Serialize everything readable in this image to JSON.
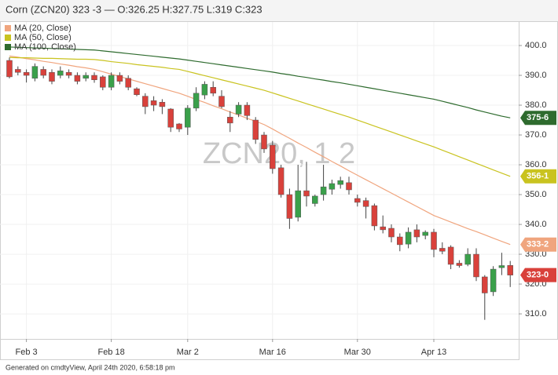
{
  "chart_data": {
    "type": "candlestick",
    "title": "Corn (ZCN20) 323 -3 — O:326.25 H:327.75 L:319 C:323",
    "watermark": "ZCN20, 1 2",
    "footer": "Generated on cmdtyView, April 24th 2020, 6:58:18 pm",
    "categories": [
      null,
      null,
      "Feb 3",
      null,
      null,
      null,
      null,
      null,
      null,
      null,
      null,
      null,
      "Feb 18",
      null,
      null,
      null,
      null,
      null,
      null,
      null,
      null,
      "Mar 2",
      null,
      null,
      null,
      null,
      null,
      null,
      null,
      null,
      null,
      "Mar 16",
      null,
      null,
      null,
      null,
      null,
      null,
      null,
      null,
      null,
      "Mar 30",
      null,
      null,
      null,
      null,
      null,
      null,
      null,
      null,
      "Apr 13",
      null,
      null,
      null,
      null,
      null,
      null,
      null,
      null,
      null
    ],
    "open": [
      395,
      392,
      391,
      389,
      392,
      391,
      390,
      391,
      390,
      389,
      390,
      389.5,
      386,
      390,
      389,
      385.5,
      383,
      381.5,
      381,
      378.7,
      373.7,
      372.6,
      379,
      383.4,
      386,
      383,
      376,
      377,
      380,
      375,
      370,
      366.6,
      359,
      350,
      342.4,
      351.3,
      347,
      350,
      351.8,
      353.4,
      354,
      348.7,
      348,
      346.3,
      339.2,
      338.7,
      335.8,
      333.4,
      338.2,
      336.3,
      337.4,
      332,
      332.4,
      327,
      326.6,
      330,
      322.4,
      317.4,
      325.5,
      326.25
    ],
    "high": [
      396,
      393,
      392,
      394,
      393,
      392,
      393,
      392,
      391,
      391,
      391,
      390,
      391,
      391,
      390,
      386,
      384,
      383,
      382,
      379,
      374,
      380,
      386,
      388,
      388,
      385,
      378,
      381,
      381,
      376,
      371,
      368,
      360,
      352,
      360,
      361,
      350,
      360,
      355,
      356,
      356,
      350,
      349,
      347,
      343,
      340,
      337,
      339,
      340,
      338,
      338.5,
      334,
      333,
      328,
      332,
      332,
      323,
      326,
      330.5,
      327.75
    ],
    "low": [
      389,
      390,
      387.6,
      388,
      389,
      387,
      389,
      389,
      387,
      388,
      387.5,
      385,
      385,
      387,
      385,
      383,
      377,
      378,
      377,
      371,
      371,
      370,
      378,
      382,
      383,
      379,
      371,
      376,
      375,
      367,
      364,
      357,
      349,
      338.5,
      341,
      346,
      346,
      348,
      350,
      352,
      350,
      346,
      342,
      338,
      337,
      334,
      331,
      332,
      334,
      335,
      329,
      330,
      325,
      325.5,
      326,
      321,
      308,
      316,
      323,
      319
    ],
    "close": [
      389.5,
      391,
      390,
      393,
      390,
      388,
      391.5,
      390,
      388,
      390,
      388.5,
      386,
      390,
      388,
      386,
      383.5,
      379.5,
      380,
      379.5,
      372.6,
      372,
      379,
      384,
      387,
      384,
      379.5,
      374,
      380,
      376.5,
      368.5,
      365.3,
      358.7,
      350,
      342,
      351.3,
      349.5,
      349.5,
      352.6,
      353.7,
      354.7,
      351.6,
      347.4,
      346,
      339.5,
      338.2,
      335.8,
      333.2,
      337.4,
      335.8,
      337.4,
      331.6,
      331,
      326.6,
      326.2,
      330,
      322.4,
      317,
      325,
      326.2,
      323
    ],
    "last_label": "323-0",
    "up_color": "#3aa04a",
    "down_color": "#d9413b",
    "series": [
      {
        "name": "MA (20, Close)",
        "color": "#f0a57e",
        "last_label": "333-2",
        "values": [
          396.5,
          396.1,
          395.6,
          395.2,
          394.7,
          394.3,
          393.8,
          393.4,
          392.9,
          392.5,
          392.0,
          391.2,
          390.4,
          389.6,
          388.8,
          388.0,
          387.2,
          386.4,
          385.6,
          384.8,
          384.0,
          383.0,
          381.9,
          380.9,
          379.8,
          378.8,
          377.7,
          376.7,
          375.6,
          374.6,
          373.5,
          372.0,
          370.4,
          368.9,
          367.3,
          365.8,
          364.2,
          362.7,
          361.1,
          359.6,
          358.0,
          356.5,
          355.0,
          353.5,
          352.0,
          350.5,
          349.0,
          347.5,
          346.0,
          344.5,
          343.0,
          341.9,
          340.8,
          339.7,
          338.6,
          337.6,
          336.5,
          335.4,
          334.3,
          333.25
        ]
      },
      {
        "name": "MA (50, Close)",
        "color": "#c9c31f",
        "last_label": "356-1",
        "values": [
          396.0,
          395.9,
          395.9,
          395.8,
          395.7,
          395.7,
          395.6,
          395.5,
          395.4,
          395.4,
          395.3,
          395.0,
          394.6,
          394.3,
          394.0,
          393.6,
          393.3,
          393.0,
          392.7,
          392.3,
          392.0,
          391.3,
          390.6,
          389.9,
          389.2,
          388.5,
          387.8,
          387.1,
          386.4,
          385.7,
          385.0,
          384.1,
          383.2,
          382.3,
          381.4,
          380.5,
          379.6,
          378.7,
          377.8,
          376.9,
          376.0,
          375,
          374,
          373,
          372,
          371,
          370,
          369,
          368,
          367,
          366,
          364.9,
          363.8,
          362.7,
          361.6,
          360.5,
          359.4,
          358.3,
          357.2,
          356.125
        ]
      },
      {
        "name": "MA (100, Close)",
        "color": "#2e6b2e",
        "last_label": "375-6",
        "values": [
          399.5,
          399.4,
          399.3,
          399.2,
          399.1,
          399.0,
          398.9,
          398.8,
          398.7,
          398.6,
          398.5,
          398.2,
          397.9,
          397.6,
          397.3,
          397.0,
          396.7,
          396.4,
          396.1,
          395.8,
          395.5,
          395.1,
          394.7,
          394.3,
          393.9,
          393.5,
          393.1,
          392.7,
          392.3,
          391.9,
          391.5,
          391.1,
          390.6,
          390.2,
          389.7,
          389.3,
          388.8,
          388.4,
          387.9,
          387.5,
          387.0,
          386.5,
          386,
          385.5,
          385,
          384.5,
          384,
          383.5,
          383,
          382.5,
          382,
          381.3,
          380.6,
          379.9,
          379.2,
          378.4,
          377.7,
          377.0,
          376.3,
          375.75
        ]
      }
    ],
    "ylim": [
      301.6,
      407.9
    ],
    "yticks": [
      {
        "value": 310,
        "label": "310.0"
      },
      {
        "value": 320,
        "label": "320.0"
      },
      {
        "value": 330,
        "label": "330.0"
      },
      {
        "value": 340,
        "label": "340.0"
      },
      {
        "value": 350,
        "label": "350.0"
      },
      {
        "value": 360,
        "label": "360.0"
      },
      {
        "value": 370,
        "label": "370.0"
      },
      {
        "value": 380,
        "label": "380.0"
      },
      {
        "value": 390,
        "label": "390.0"
      },
      {
        "value": 400,
        "label": "400.0"
      }
    ],
    "grid": true
  }
}
